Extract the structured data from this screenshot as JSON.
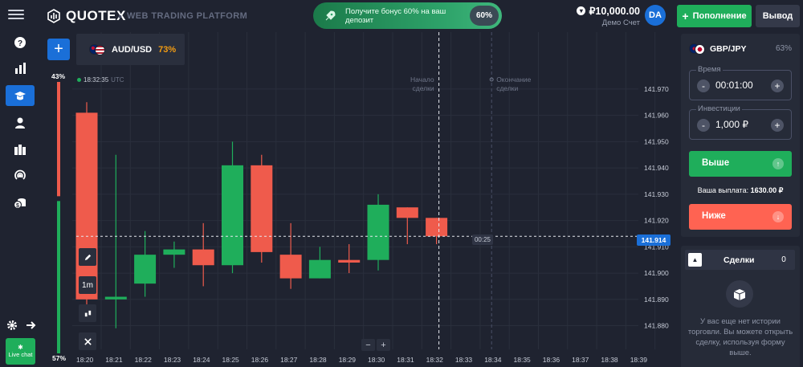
{
  "header": {
    "logo_text": "QUOTEX",
    "platform_label": "WEB TRADING PLATFORM",
    "promo": {
      "text": "Получите бонус 60% на ваш депозит",
      "badge": "60%"
    },
    "balance": {
      "amount": "₽10,000.00",
      "account_type": "Демо Счет"
    },
    "avatar_initials": "DA",
    "deposit_label": "Пополнение",
    "withdraw_label": "Вывод"
  },
  "sidebar": {
    "items": [
      "help-icon",
      "stats-icon",
      "education-icon",
      "profile-icon",
      "market-icon",
      "signals-icon",
      "coins-icon"
    ],
    "active_index": 2,
    "live_chat_label": "Live chat"
  },
  "chart": {
    "asset": {
      "name": "AUD/USD",
      "payout_pct": "73%"
    },
    "server_time": "18:32:35",
    "timezone": "UTC",
    "sentiment_up": "43%",
    "sentiment_down": "57%",
    "timeframe": "1m",
    "deal_start_label": [
      "Начало",
      "сделки"
    ],
    "deal_end_label": [
      "Окончание",
      "сделки"
    ],
    "current_price": "141.914",
    "countdown": "00:25",
    "zoom_out": "−",
    "zoom_in": "+",
    "colors": {
      "up": "#1fae5b",
      "down": "#ef5b4c",
      "accent": "#1a6fd8"
    }
  },
  "chart_data": {
    "type": "candlestick",
    "y_ticks": [
      "141.970",
      "141.960",
      "141.950",
      "141.940",
      "141.930",
      "141.920",
      "141.910",
      "141.900",
      "141.890",
      "141.880"
    ],
    "y_tick_values": [
      141.97,
      141.96,
      141.95,
      141.94,
      141.93,
      141.92,
      141.91,
      141.9,
      141.89,
      141.88
    ],
    "x_ticks": [
      "18:20",
      "18:21",
      "18:22",
      "18:23",
      "18:24",
      "18:25",
      "18:26",
      "18:27",
      "18:28",
      "18:29",
      "18:30",
      "18:31",
      "18:32",
      "18:33",
      "18:34",
      "18:35",
      "18:36",
      "18:37",
      "18:38",
      "18:39"
    ],
    "ylim": [
      141.871,
      141.977
    ],
    "candles": [
      {
        "t": "18:20",
        "o": 141.961,
        "h": 141.965,
        "l": 141.884,
        "c": 141.89
      },
      {
        "t": "18:21",
        "o": 141.89,
        "h": 141.945,
        "l": 141.879,
        "c": 141.891
      },
      {
        "t": "18:22",
        "o": 141.896,
        "h": 141.916,
        "l": 141.891,
        "c": 141.907
      },
      {
        "t": "18:23",
        "o": 141.907,
        "h": 141.912,
        "l": 141.902,
        "c": 141.909
      },
      {
        "t": "18:24",
        "o": 141.909,
        "h": 141.919,
        "l": 141.895,
        "c": 141.903
      },
      {
        "t": "18:25",
        "o": 141.903,
        "h": 141.95,
        "l": 141.9,
        "c": 141.941
      },
      {
        "t": "18:26",
        "o": 141.941,
        "h": 141.945,
        "l": 141.904,
        "c": 141.908
      },
      {
        "t": "18:27",
        "o": 141.907,
        "h": 141.919,
        "l": 141.894,
        "c": 141.898
      },
      {
        "t": "18:28",
        "o": 141.898,
        "h": 141.91,
        "l": 141.898,
        "c": 141.905
      },
      {
        "t": "18:29",
        "o": 141.905,
        "h": 141.911,
        "l": 141.9,
        "c": 141.904
      },
      {
        "t": "18:30",
        "o": 141.905,
        "h": 141.93,
        "l": 141.901,
        "c": 141.926
      },
      {
        "t": "18:31",
        "o": 141.925,
        "h": 141.925,
        "l": 141.911,
        "c": 141.921
      },
      {
        "t": "18:32",
        "o": 141.921,
        "h": 141.921,
        "l": 141.911,
        "c": 141.914
      }
    ],
    "current_price": 141.914,
    "deal_start_time": "18:32",
    "deal_end_time": "18:34"
  },
  "panel": {
    "asset": "GBP/JPY",
    "payout_pct": "63%",
    "time_label": "Время",
    "time_value": "00:01:00",
    "investment_label": "Инвестиции",
    "investment_value": "1,000 ₽",
    "minus": "-",
    "plus": "+",
    "up_label": "Выше",
    "down_label": "Ниже",
    "payout_label": "Ваша выплата:",
    "payout_value": "1630.00 ₽"
  },
  "trades": {
    "title": "Сделки",
    "count": "0",
    "empty_text": "У вас еще нет истории торговли. Вы можете открыть сделку, используя форму выше."
  }
}
